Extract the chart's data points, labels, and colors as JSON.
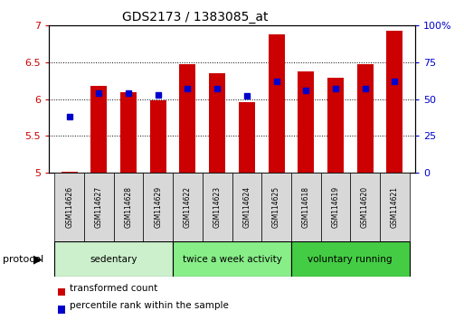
{
  "title": "GDS2173 / 1383085_at",
  "samples": [
    "GSM114626",
    "GSM114627",
    "GSM114628",
    "GSM114629",
    "GSM114622",
    "GSM114623",
    "GSM114624",
    "GSM114625",
    "GSM114618",
    "GSM114619",
    "GSM114620",
    "GSM114621"
  ],
  "red_values": [
    5.02,
    6.18,
    6.1,
    5.99,
    6.48,
    6.35,
    5.96,
    6.88,
    6.38,
    6.29,
    6.48,
    6.93
  ],
  "blue_values_pct": [
    38,
    54,
    54,
    53,
    57,
    57,
    52,
    62,
    56,
    57,
    57,
    62
  ],
  "ylim_left": [
    5.0,
    7.0
  ],
  "ylim_right": [
    0,
    100
  ],
  "yticks_left": [
    5.0,
    5.5,
    6.0,
    6.5,
    7.0
  ],
  "ytick_labels_left": [
    "5",
    "5.5",
    "6",
    "6.5",
    "7"
  ],
  "yticks_right": [
    0,
    25,
    50,
    75,
    100
  ],
  "ytick_labels_right": [
    "0",
    "25",
    "50",
    "75",
    "100%"
  ],
  "groups": [
    {
      "label": "sedentary",
      "start": 0,
      "end": 4,
      "color": "#ccf0cc"
    },
    {
      "label": "twice a week activity",
      "start": 4,
      "end": 8,
      "color": "#88ee88"
    },
    {
      "label": "voluntary running",
      "start": 8,
      "end": 12,
      "color": "#44cc44"
    }
  ],
  "red_color": "#cc0000",
  "blue_color": "#0000cc",
  "bar_width": 0.55,
  "legend_red": "transformed count",
  "legend_blue": "percentile rank within the sample",
  "background_color": "#ffffff",
  "left_tick_color": "#cc0000",
  "right_tick_color": "#0000cc"
}
